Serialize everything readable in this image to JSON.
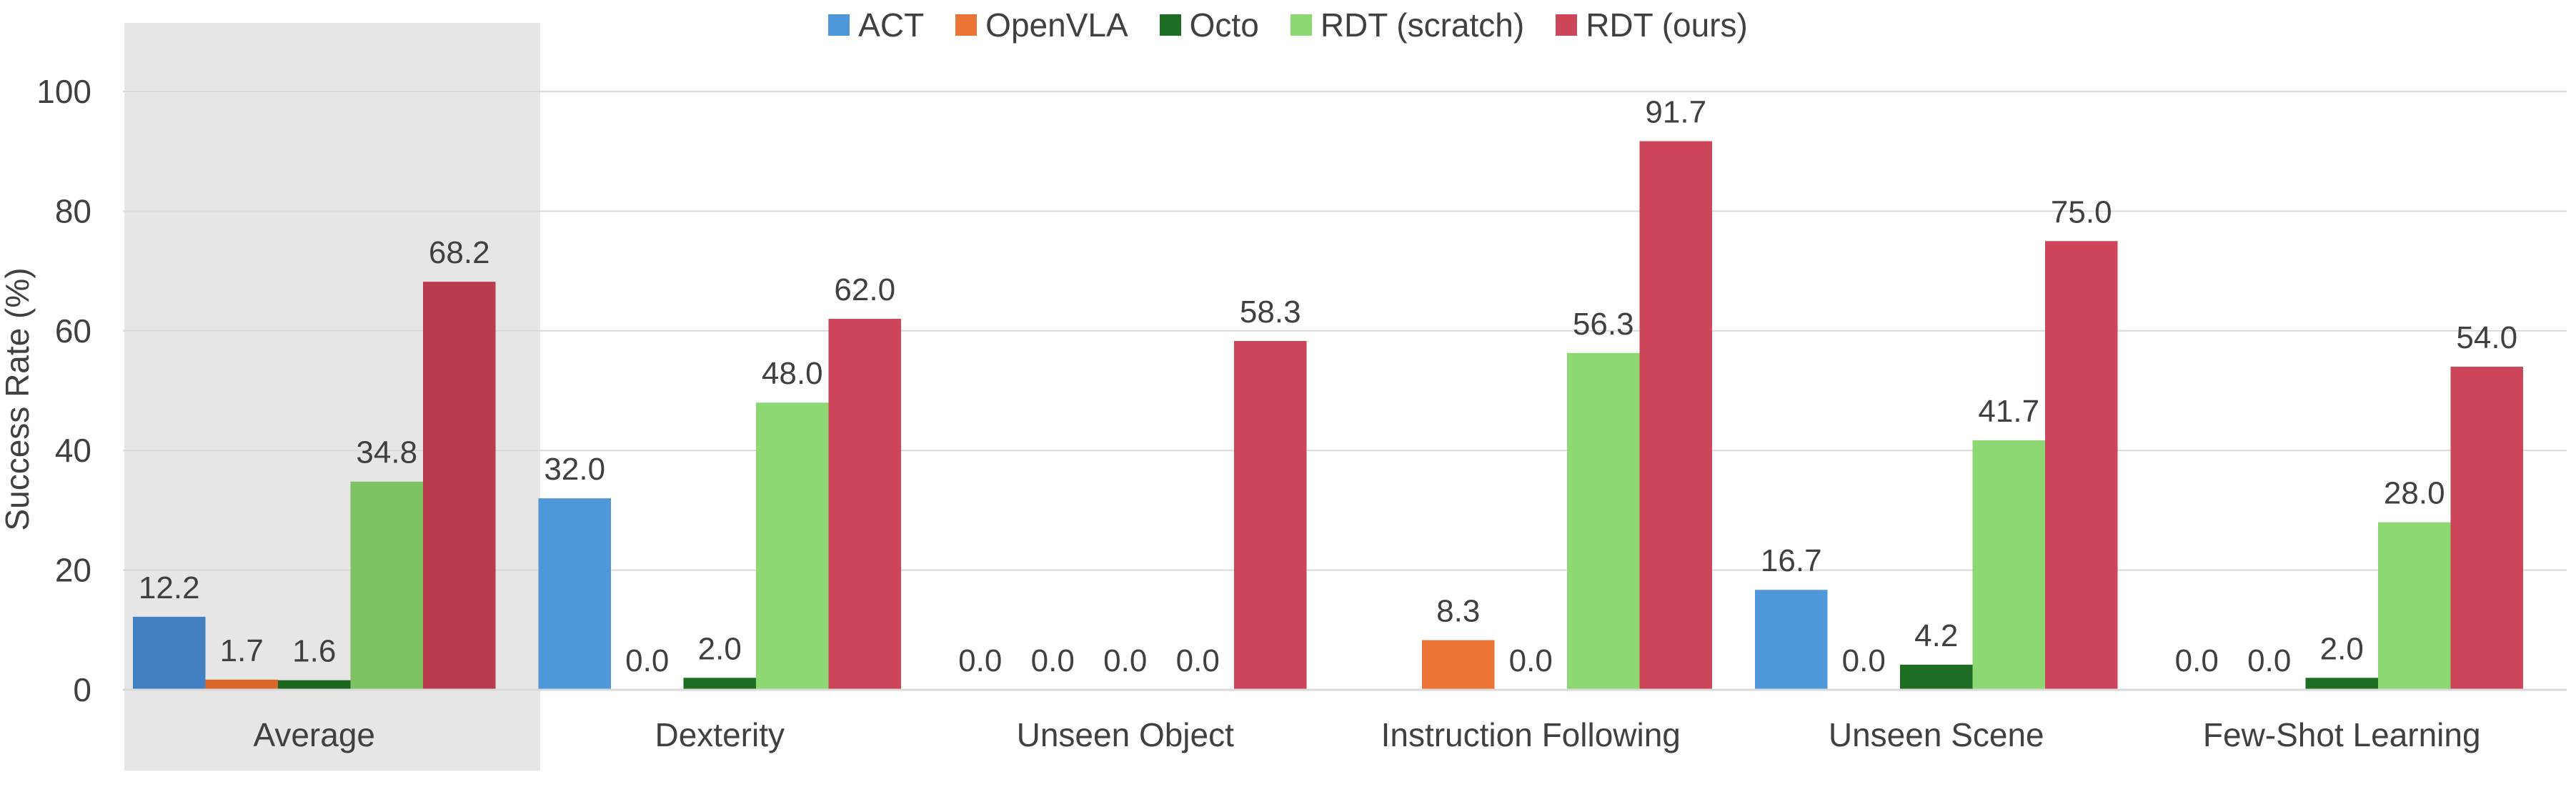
{
  "chart_data": {
    "type": "bar",
    "categories": [
      "Average",
      "Dexterity",
      "Unseen Object",
      "Instruction Following",
      "Unseen Scene",
      "Few-Shot Learning"
    ],
    "series": [
      {
        "name": "ACT",
        "values": [
          12.2,
          32.0,
          0.0,
          null,
          16.7,
          0.0
        ],
        "labels": [
          "12.2",
          "32.0",
          "0.0",
          "",
          "16.7",
          "0.0"
        ],
        "color": "#4E97DB",
        "highlight_color": "#4380C2"
      },
      {
        "name": "OpenVLA",
        "values": [
          1.7,
          0.0,
          0.0,
          8.3,
          0.0,
          0.0
        ],
        "labels": [
          "1.7",
          "0.0",
          "0.0",
          "8.3",
          "0.0",
          "0.0"
        ],
        "color": "#EA7436",
        "highlight_color": "#D8672C"
      },
      {
        "name": "Octo",
        "values": [
          1.6,
          2.0,
          0.0,
          0.0,
          4.2,
          2.0
        ],
        "labels": [
          "1.6",
          "2.0",
          "0.0",
          "0.0",
          "4.2",
          "2.0"
        ],
        "color": "#1D6E22",
        "highlight_color": "#1A661F"
      },
      {
        "name": "RDT (scratch)",
        "values": [
          34.8,
          48.0,
          0.0,
          56.3,
          41.7,
          28.0
        ],
        "labels": [
          "34.8",
          "48.0",
          "0.0",
          "56.3",
          "41.7",
          "28.0"
        ],
        "color": "#8ED873",
        "highlight_color": "#7FC264"
      },
      {
        "name": "RDT (ours)",
        "values": [
          68.2,
          62.0,
          58.3,
          91.7,
          75.0,
          54.0
        ],
        "labels": [
          "68.2",
          "62.0",
          "58.3",
          "91.7",
          "75.0",
          "54.0"
        ],
        "color": "#CC4558",
        "highlight_color": "#B83B4E"
      }
    ],
    "ylabel": "Success Rate (%)",
    "xlabel": "",
    "title": "",
    "ylim": [
      0,
      100
    ],
    "yticks": [
      0,
      20,
      40,
      60,
      80,
      100
    ],
    "grid": true,
    "legend_position": "top-center",
    "highlighted_category": "Average",
    "highlight_background": "#E6E6E6",
    "gridline_color": "#D9D9D9",
    "text_color": "#404040"
  }
}
